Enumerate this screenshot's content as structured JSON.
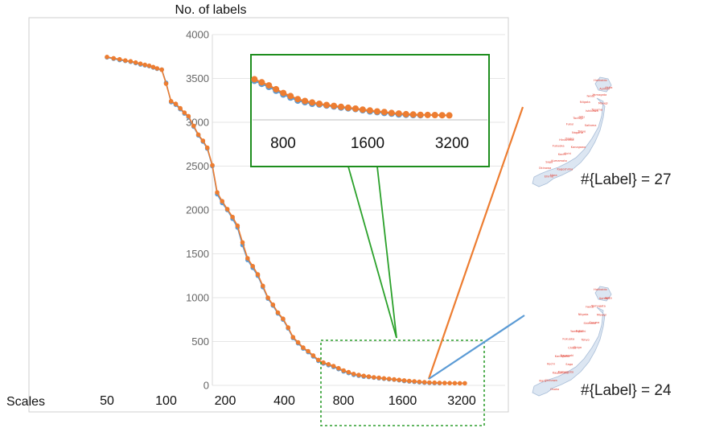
{
  "chart_data": {
    "type": "line",
    "ylabel": "No. of labels",
    "xlabel": "Scales",
    "x_scale": "log2",
    "x_ticks": [
      "50",
      "100",
      "200",
      "400",
      "800",
      "1600",
      "3200"
    ],
    "y_ticks": [
      "0",
      "500",
      "1000",
      "1500",
      "2000",
      "2500",
      "3000",
      "3500",
      "4000"
    ],
    "ylim": [
      0,
      4000
    ],
    "grid": "horizontal",
    "series": [
      {
        "color": "#5b9bd5",
        "x": [
          50,
          54,
          58,
          62,
          66,
          70,
          74,
          78,
          82,
          86,
          90,
          95,
          100,
          106,
          112,
          118,
          124,
          130,
          138,
          146,
          154,
          162,
          172,
          182,
          193,
          205,
          218,
          231,
          245,
          260,
          276,
          293,
          311,
          330,
          350,
          371,
          394,
          418,
          443,
          470,
          499,
          529,
          561,
          596,
          632,
          671,
          712,
          755,
          801,
          850,
          902,
          957,
          1015,
          1077,
          1143,
          1213,
          1287,
          1365,
          1449,
          1537,
          1631,
          1731,
          1836,
          1948,
          2067,
          2193,
          2327,
          2469
        ],
        "y": [
          3740,
          3725,
          3710,
          3700,
          3690,
          3675,
          3660,
          3650,
          3640,
          3625,
          3610,
          3600,
          3450,
          3230,
          3200,
          3150,
          3100,
          3060,
          2950,
          2850,
          2780,
          2700,
          2500,
          2180,
          2080,
          2000,
          1900,
          1800,
          1600,
          1430,
          1340,
          1250,
          1120,
          990,
          910,
          820,
          750,
          650,
          540,
          480,
          420,
          380,
          330,
          280,
          250,
          230,
          210,
          185,
          160,
          140,
          120,
          110,
          100,
          95,
          88,
          82,
          75,
          70,
          65,
          58,
          50,
          45,
          40,
          35,
          30,
          28,
          26,
          25
        ]
      },
      {
        "color": "#ed7d31",
        "x": [
          50,
          54,
          58,
          62,
          66,
          70,
          74,
          78,
          82,
          86,
          90,
          95,
          100,
          106,
          112,
          118,
          124,
          130,
          138,
          146,
          154,
          162,
          172,
          182,
          193,
          205,
          218,
          231,
          245,
          260,
          276,
          293,
          311,
          330,
          350,
          371,
          394,
          418,
          443,
          470,
          499,
          529,
          561,
          596,
          632,
          671,
          712,
          755,
          801,
          850,
          902,
          957,
          1015,
          1077,
          1143,
          1213,
          1287,
          1365,
          1449,
          1537,
          1631,
          1731,
          1836,
          1948,
          2067,
          2193,
          2327,
          2469,
          2620,
          2780,
          2950,
          3130,
          3321
        ],
        "y": [
          3745,
          3730,
          3718,
          3705,
          3695,
          3682,
          3668,
          3655,
          3645,
          3630,
          3615,
          3600,
          3440,
          3240,
          3210,
          3160,
          3110,
          3070,
          2960,
          2860,
          2790,
          2710,
          2510,
          2200,
          2100,
          2010,
          1920,
          1820,
          1630,
          1450,
          1360,
          1265,
          1135,
          1000,
          920,
          830,
          760,
          660,
          550,
          490,
          430,
          390,
          340,
          290,
          260,
          240,
          220,
          195,
          170,
          150,
          130,
          118,
          108,
          100,
          92,
          86,
          80,
          74,
          68,
          62,
          56,
          50,
          46,
          40,
          36,
          32,
          30,
          28,
          27,
          26,
          25,
          24,
          24
        ]
      }
    ],
    "zoom_inset": {
      "x_ticks": [
        "800",
        "1600",
        "3200"
      ]
    },
    "maps": [
      {
        "caption": "#{Label} = 27",
        "labels": [
          "Hokkaido",
          "Aomori",
          "Akita",
          "Iwate",
          "Yamagata",
          "Miyagi",
          "Niigata",
          "Ishikawa",
          "Toyama",
          "Tochigi",
          "Gifu",
          "Saitama",
          "Fukui",
          "Nagano",
          "Tokyo",
          "Hiroshima",
          "Osaka",
          "Kanagawa",
          "Fukuoka",
          "Kochi",
          "Aichi",
          "Saga",
          "Kumamoto",
          "Kagoshima",
          "Okinawa",
          "Ehime",
          "Nara"
        ]
      },
      {
        "caption": "#{Label} = 24",
        "labels": [
          "Hokkaido",
          "Aomori",
          "Akita",
          "Iwate",
          "Yamagata",
          "Miyagi",
          "Niigata",
          "Shimane",
          "Gunma",
          "Yamaguchi",
          "Fukui",
          "Tokyo",
          "Fukuoka",
          "Chiba",
          "Shiga",
          "Kanagawa",
          "Nagasaki",
          "Saga",
          "Kochi",
          "Kagoshima",
          "Kumamoto",
          "Nara",
          "Okinawa",
          "Osaka"
        ]
      }
    ]
  }
}
